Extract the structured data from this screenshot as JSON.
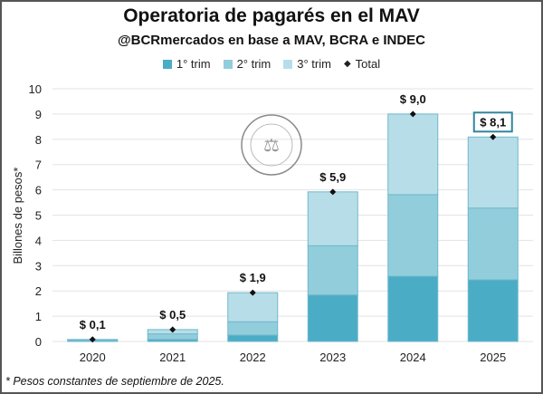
{
  "chart_data": {
    "type": "bar",
    "stacked": true,
    "title": "Operatoria de pagarés en el MAV",
    "subtitle": "@BCRmercados en base a MAV, BCRA e INDEC",
    "ylabel": "Billones de pesos*",
    "xlabel": "",
    "ylim": [
      0,
      10
    ],
    "yticks": [
      0,
      1,
      2,
      3,
      4,
      5,
      6,
      7,
      8,
      9,
      10
    ],
    "grid": true,
    "legend_placement": "top",
    "categories": [
      "2020",
      "2021",
      "2022",
      "2023",
      "2024",
      "2025"
    ],
    "series": [
      {
        "name": "1° trim",
        "color": "#4BACC6",
        "values": [
          0.03,
          0.08,
          0.25,
          1.84,
          2.58,
          2.44
        ]
      },
      {
        "name": "2° trim",
        "color": "#92CDDC",
        "values": [
          0.03,
          0.22,
          0.53,
          1.95,
          3.23,
          2.84
        ]
      },
      {
        "name": "3° trim",
        "color": "#B7DEE8",
        "values": [
          0.02,
          0.17,
          1.15,
          2.13,
          3.19,
          2.81
        ]
      }
    ],
    "total": {
      "name": "Total",
      "values": [
        0.08,
        0.47,
        1.93,
        5.92,
        9.0,
        8.09
      ],
      "labels": [
        "$ 0,1",
        "$ 0,5",
        "$ 1,9",
        "$ 5,9",
        "$ 9,0",
        "$ 8,1"
      ]
    },
    "highlighted_label_index": 5,
    "footnote": "* Pesos constantes de septiembre de 2025.",
    "watermark": "BOLSA DE COMERCIO DE ROSARIO"
  }
}
